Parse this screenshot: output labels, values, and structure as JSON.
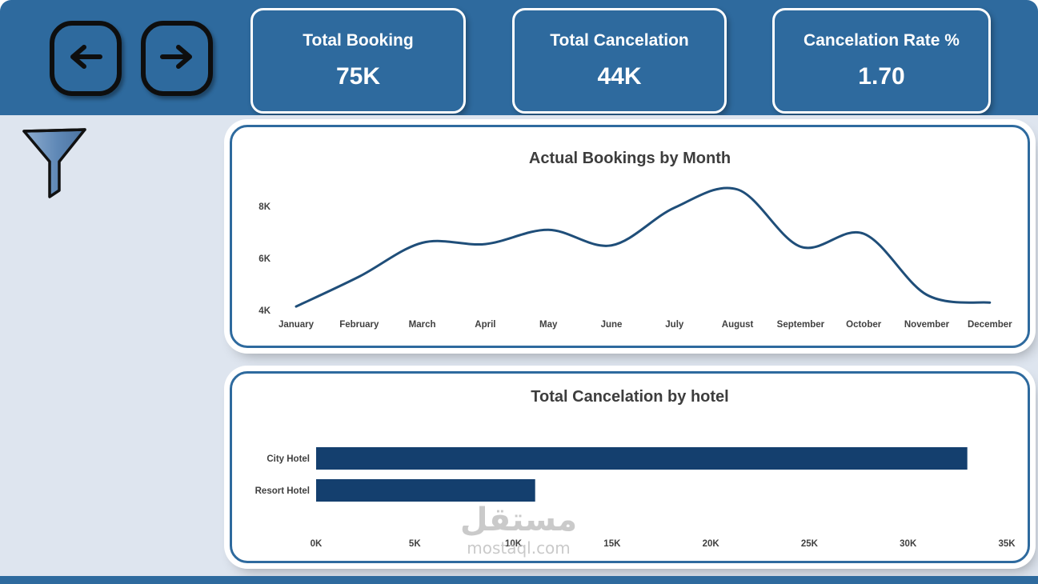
{
  "header": {
    "kpis": [
      {
        "label": "Total Booking",
        "value": "75K"
      },
      {
        "label": "Total Cancelation",
        "value": "44K"
      },
      {
        "label": "Cancelation Rate %",
        "value": "1.70"
      }
    ]
  },
  "colors": {
    "header_bg": "#2e6a9e",
    "page_bg": "#dee5ef",
    "card_border": "#2e6a9e",
    "line": "#1f4e79",
    "bar": "#143f6e",
    "tick_text": "#404040"
  },
  "chart_data": [
    {
      "type": "line",
      "title": "Actual Bookings by Month",
      "categories": [
        "January",
        "February",
        "March",
        "April",
        "May",
        "June",
        "July",
        "August",
        "September",
        "October",
        "November",
        "December"
      ],
      "values": [
        4150,
        5300,
        6600,
        6550,
        7100,
        6500,
        7950,
        8650,
        6450,
        6950,
        4600,
        4300
      ],
      "ylim": [
        4000,
        9000
      ],
      "yticks": [
        {
          "label": "4K",
          "value": 4000
        },
        {
          "label": "6K",
          "value": 6000
        },
        {
          "label": "8K",
          "value": 8000
        }
      ],
      "grid": false,
      "legend": false
    },
    {
      "type": "bar",
      "title": "Total Cancelation by hotel",
      "categories": [
        "City Hotel",
        "Resort Hotel"
      ],
      "values": [
        33000,
        11100
      ],
      "xlim": [
        0,
        35000
      ],
      "xticks": [
        {
          "label": "0K",
          "value": 0
        },
        {
          "label": "5K",
          "value": 5000
        },
        {
          "label": "10K",
          "value": 10000
        },
        {
          "label": "15K",
          "value": 15000
        },
        {
          "label": "20K",
          "value": 20000
        },
        {
          "label": "25K",
          "value": 25000
        },
        {
          "label": "30K",
          "value": 30000
        },
        {
          "label": "35K",
          "value": 35000
        }
      ],
      "grid": false,
      "legend": false
    }
  ],
  "watermark": {
    "arabic": "مستقل",
    "latin": "mostaql.com"
  }
}
